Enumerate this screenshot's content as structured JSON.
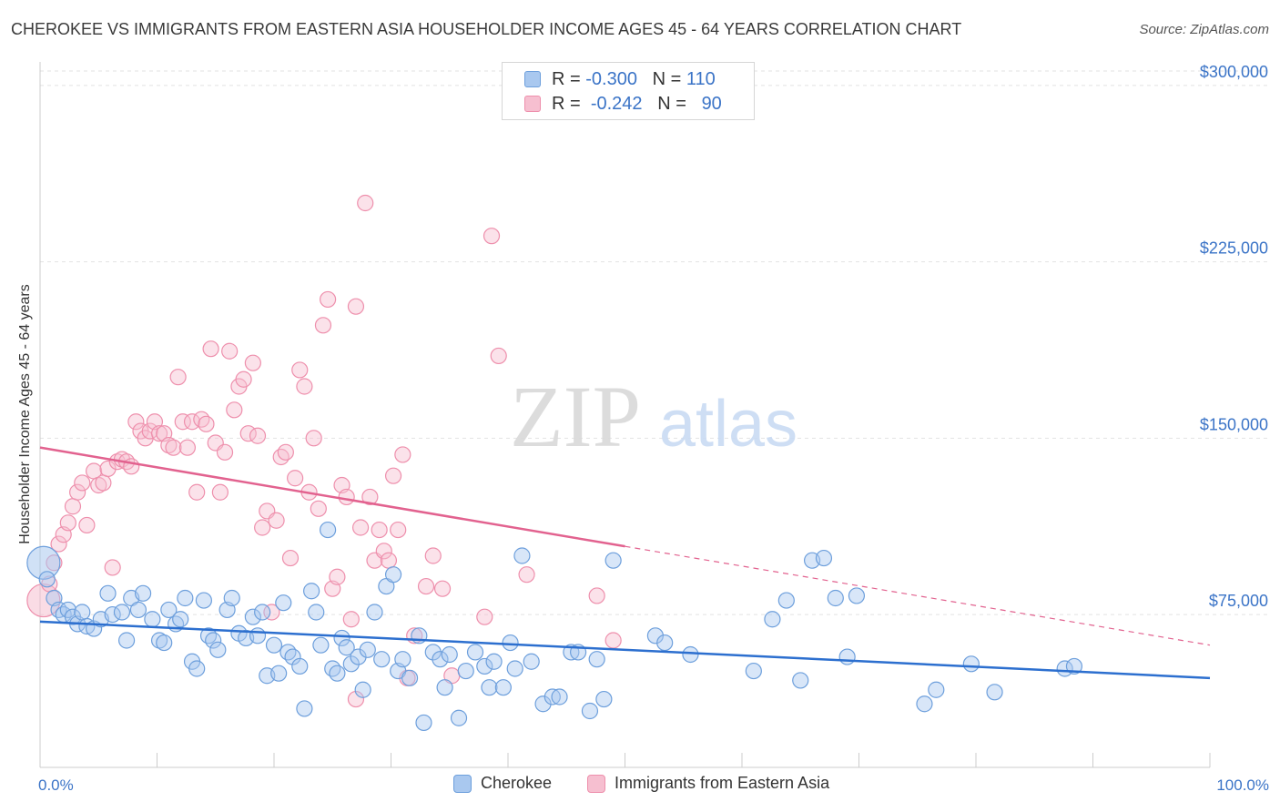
{
  "title": "CHEROKEE VS IMMIGRANTS FROM EASTERN ASIA HOUSEHOLDER INCOME AGES 45 - 64 YEARS CORRELATION CHART",
  "source": "Source: ZipAtlas.com",
  "watermark": {
    "zip": "ZIP",
    "atlas": "atlas"
  },
  "legend_top": {
    "rows": [
      {
        "r_label": "R =",
        "r_value": "-0.300",
        "n_label": "N =",
        "n_value": "110"
      },
      {
        "r_label": "R =",
        "r_value": "-0.242",
        "n_label": "N =",
        "n_value": "90"
      }
    ]
  },
  "colors": {
    "blue_fill": "#a9c8ef",
    "blue_stroke": "#6d9fdc",
    "blue_line": "#2c6fcf",
    "pink_fill": "#f6bfd0",
    "pink_stroke": "#ee8fac",
    "pink_line": "#e2628f",
    "axis_text": "#3b74c7",
    "grid": "#e2e2e2"
  },
  "chart_data": {
    "type": "scatter",
    "xlabel": "",
    "ylabel": "Householder Income Ages 45 - 64 years",
    "xlim": [
      0,
      100
    ],
    "ylim": [
      10000,
      310000
    ],
    "x_tick_labels": [
      "0.0%",
      "100.0%"
    ],
    "y_ticks": [
      75000,
      150000,
      225000,
      300000
    ],
    "y_tick_labels": [
      "$75,000",
      "$150,000",
      "$225,000",
      "$300,000"
    ],
    "grid": true,
    "legend_position": "bottom",
    "series": [
      {
        "name": "Cherokee",
        "color": "#6d9fdc",
        "trend": {
          "x_start": 0,
          "y_start": 72000,
          "x_end": 100,
          "y_end": 48000
        },
        "points": [
          [
            0.3,
            97000
          ],
          [
            0.6,
            90000
          ],
          [
            1.2,
            82000
          ],
          [
            1.6,
            77000
          ],
          [
            2.0,
            75000
          ],
          [
            2.4,
            77000
          ],
          [
            2.8,
            74000
          ],
          [
            3.2,
            71000
          ],
          [
            3.6,
            76000
          ],
          [
            4.0,
            70000
          ],
          [
            4.6,
            69000
          ],
          [
            5.2,
            73000
          ],
          [
            5.8,
            84000
          ],
          [
            6.2,
            75000
          ],
          [
            7.0,
            76000
          ],
          [
            7.4,
            64000
          ],
          [
            7.8,
            82000
          ],
          [
            8.4,
            77000
          ],
          [
            8.8,
            84000
          ],
          [
            9.6,
            73000
          ],
          [
            10.2,
            64000
          ],
          [
            10.6,
            63000
          ],
          [
            11.0,
            77000
          ],
          [
            11.6,
            71000
          ],
          [
            12.0,
            73000
          ],
          [
            12.4,
            82000
          ],
          [
            13.0,
            55000
          ],
          [
            13.4,
            52000
          ],
          [
            14.0,
            81000
          ],
          [
            14.4,
            66000
          ],
          [
            14.8,
            64000
          ],
          [
            15.2,
            60000
          ],
          [
            16.0,
            77000
          ],
          [
            16.4,
            82000
          ],
          [
            17.0,
            67000
          ],
          [
            17.6,
            65000
          ],
          [
            18.2,
            74000
          ],
          [
            18.6,
            66000
          ],
          [
            19.0,
            76000
          ],
          [
            19.4,
            49000
          ],
          [
            20.0,
            62000
          ],
          [
            20.4,
            50000
          ],
          [
            20.8,
            80000
          ],
          [
            21.2,
            59000
          ],
          [
            21.6,
            57000
          ],
          [
            22.2,
            53000
          ],
          [
            22.6,
            35000
          ],
          [
            23.2,
            85000
          ],
          [
            23.6,
            76000
          ],
          [
            24.0,
            62000
          ],
          [
            24.6,
            111000
          ],
          [
            25.0,
            52000
          ],
          [
            25.4,
            50000
          ],
          [
            25.8,
            65000
          ],
          [
            26.2,
            61000
          ],
          [
            26.6,
            54000
          ],
          [
            27.2,
            57000
          ],
          [
            27.6,
            43000
          ],
          [
            28.0,
            60000
          ],
          [
            28.6,
            76000
          ],
          [
            29.2,
            56000
          ],
          [
            29.6,
            87000
          ],
          [
            30.2,
            92000
          ],
          [
            30.6,
            51000
          ],
          [
            31.0,
            56000
          ],
          [
            31.6,
            48000
          ],
          [
            32.4,
            66000
          ],
          [
            32.8,
            29000
          ],
          [
            33.6,
            59000
          ],
          [
            34.2,
            56000
          ],
          [
            34.6,
            44000
          ],
          [
            35.0,
            58000
          ],
          [
            35.8,
            31000
          ],
          [
            36.4,
            51000
          ],
          [
            37.2,
            59000
          ],
          [
            38.0,
            53000
          ],
          [
            38.4,
            44000
          ],
          [
            38.8,
            55000
          ],
          [
            39.6,
            44000
          ],
          [
            40.2,
            63000
          ],
          [
            40.6,
            52000
          ],
          [
            41.2,
            100000
          ],
          [
            42.0,
            55000
          ],
          [
            43.0,
            37000
          ],
          [
            43.8,
            40000
          ],
          [
            44.4,
            40000
          ],
          [
            45.4,
            59000
          ],
          [
            46.0,
            59000
          ],
          [
            47.0,
            34000
          ],
          [
            47.6,
            56000
          ],
          [
            48.2,
            39000
          ],
          [
            49.0,
            98000
          ],
          [
            52.6,
            66000
          ],
          [
            53.4,
            63000
          ],
          [
            55.6,
            58000
          ],
          [
            61.0,
            51000
          ],
          [
            62.6,
            73000
          ],
          [
            63.8,
            81000
          ],
          [
            65.0,
            47000
          ],
          [
            66.0,
            98000
          ],
          [
            67.0,
            99000
          ],
          [
            68.0,
            82000
          ],
          [
            69.8,
            83000
          ],
          [
            69.0,
            57000
          ],
          [
            75.6,
            37000
          ],
          [
            76.6,
            43000
          ],
          [
            79.6,
            54000
          ],
          [
            81.6,
            42000
          ],
          [
            87.6,
            52000
          ],
          [
            88.4,
            53000
          ]
        ]
      },
      {
        "name": "Immigrants from Eastern Asia",
        "color": "#ee8fac",
        "trend": {
          "x_start": 0,
          "y_start": 146000,
          "x_end": 50,
          "y_end": 104000,
          "dash_x_end": 100,
          "dash_y_end": 62000
        },
        "points": [
          [
            0.3,
            81000
          ],
          [
            0.8,
            88000
          ],
          [
            1.2,
            97000
          ],
          [
            1.6,
            105000
          ],
          [
            2.0,
            109000
          ],
          [
            2.4,
            114000
          ],
          [
            2.8,
            121000
          ],
          [
            3.2,
            127000
          ],
          [
            3.6,
            131000
          ],
          [
            4.0,
            113000
          ],
          [
            4.6,
            136000
          ],
          [
            5.0,
            130000
          ],
          [
            5.4,
            131000
          ],
          [
            5.8,
            137000
          ],
          [
            6.2,
            95000
          ],
          [
            6.6,
            140000
          ],
          [
            7.0,
            141000
          ],
          [
            7.4,
            140000
          ],
          [
            7.8,
            138000
          ],
          [
            8.2,
            157000
          ],
          [
            8.6,
            153000
          ],
          [
            9.0,
            150000
          ],
          [
            9.4,
            153000
          ],
          [
            9.8,
            157000
          ],
          [
            10.2,
            152000
          ],
          [
            10.6,
            152000
          ],
          [
            11.0,
            147000
          ],
          [
            11.4,
            146000
          ],
          [
            11.8,
            176000
          ],
          [
            12.2,
            157000
          ],
          [
            12.6,
            146000
          ],
          [
            13.0,
            157000
          ],
          [
            13.4,
            127000
          ],
          [
            13.8,
            158000
          ],
          [
            14.2,
            156000
          ],
          [
            14.6,
            188000
          ],
          [
            15.0,
            148000
          ],
          [
            15.4,
            127000
          ],
          [
            15.8,
            144000
          ],
          [
            16.2,
            187000
          ],
          [
            16.6,
            162000
          ],
          [
            17.0,
            172000
          ],
          [
            17.4,
            175000
          ],
          [
            17.8,
            152000
          ],
          [
            18.2,
            182000
          ],
          [
            18.6,
            151000
          ],
          [
            19.0,
            112000
          ],
          [
            19.4,
            119000
          ],
          [
            19.8,
            76000
          ],
          [
            20.2,
            115000
          ],
          [
            20.6,
            142000
          ],
          [
            21.0,
            144000
          ],
          [
            21.4,
            99000
          ],
          [
            21.8,
            133000
          ],
          [
            22.2,
            179000
          ],
          [
            22.6,
            172000
          ],
          [
            23.0,
            127000
          ],
          [
            23.4,
            150000
          ],
          [
            23.8,
            120000
          ],
          [
            24.2,
            198000
          ],
          [
            24.6,
            209000
          ],
          [
            25.0,
            86000
          ],
          [
            25.4,
            91000
          ],
          [
            25.8,
            130000
          ],
          [
            26.2,
            125000
          ],
          [
            26.6,
            73000
          ],
          [
            27.0,
            206000
          ],
          [
            27.4,
            112000
          ],
          [
            27.8,
            250000
          ],
          [
            28.2,
            125000
          ],
          [
            28.6,
            98000
          ],
          [
            29.0,
            111000
          ],
          [
            29.4,
            102000
          ],
          [
            29.8,
            98000
          ],
          [
            30.2,
            134000
          ],
          [
            30.6,
            111000
          ],
          [
            31.0,
            143000
          ],
          [
            31.4,
            48000
          ],
          [
            32.0,
            66000
          ],
          [
            33.0,
            87000
          ],
          [
            33.6,
            100000
          ],
          [
            34.4,
            86000
          ],
          [
            35.2,
            49000
          ],
          [
            38.0,
            74000
          ],
          [
            38.6,
            236000
          ],
          [
            39.2,
            185000
          ],
          [
            41.6,
            92000
          ],
          [
            47.6,
            83000
          ],
          [
            49.0,
            64000
          ],
          [
            27.0,
            39000
          ]
        ]
      }
    ]
  },
  "legend_bottom": [
    {
      "label": "Cherokee"
    },
    {
      "label": "Immigrants from Eastern Asia"
    }
  ]
}
